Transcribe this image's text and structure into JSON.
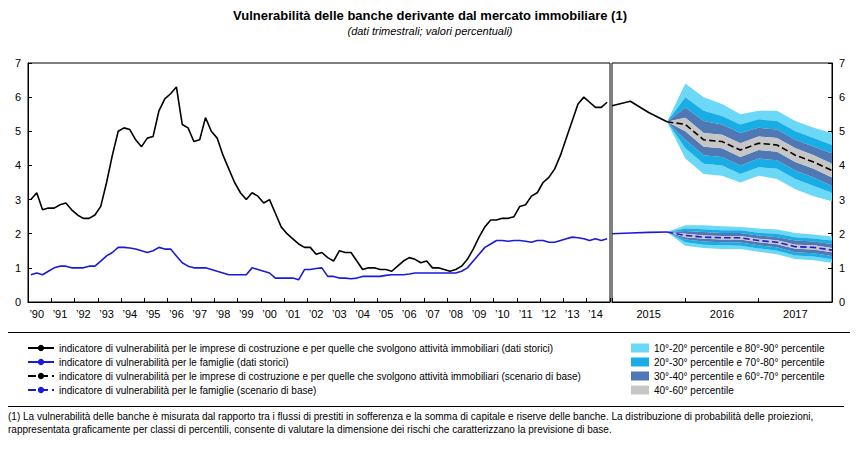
{
  "title": "Vulnerabilità delle banche derivante dal mercato immobiliare (1)",
  "subtitle": "(dati trimestrali; valori percentuali)",
  "note": "(1) La vulnerabilità delle banche è misurata dal rapporto tra i flussi di prestiti in sofferenza e la somma di capitale e riserve delle banche. La distribuzione di probabilità delle proiezioni, rappresentata graficamente per classi di percentili, consente di valutare la dimensione dei rischi che caratterizzano la previsione di base.",
  "chart_data": [
    {
      "type": "line",
      "categories": [
        null,
        "’90",
        null,
        null,
        null,
        "’91",
        null,
        null,
        null,
        "’92",
        null,
        null,
        null,
        "’93",
        null,
        null,
        null,
        "’94",
        null,
        null,
        null,
        "’95",
        null,
        null,
        null,
        "’96",
        null,
        null,
        null,
        "’97",
        null,
        null,
        null,
        "’98",
        null,
        null,
        null,
        "’99",
        null,
        null,
        null,
        "’00",
        null,
        null,
        null,
        "’01",
        null,
        null,
        null,
        "’02",
        null,
        null,
        null,
        "’03",
        null,
        null,
        null,
        "’04",
        null,
        null,
        null,
        "’05",
        null,
        null,
        null,
        "’06",
        null,
        null,
        null,
        "’07",
        null,
        null,
        null,
        "’08",
        null,
        null,
        null,
        "’09",
        null,
        null,
        null,
        "’10",
        null,
        null,
        null,
        "’11",
        null,
        null,
        null,
        "’12",
        null,
        null,
        null,
        "’13",
        null,
        null,
        null,
        "’14",
        null,
        null
      ],
      "ylim": [
        0,
        7
      ],
      "yticks": [
        0,
        1,
        2,
        3,
        4,
        5,
        6,
        7
      ],
      "grid": false,
      "legend": "bottom",
      "series": [
        {
          "name": "indicatore di vulnerabilità per le imprese di costruzione e per quelle che svolgono attività immobiliari (dati storici)",
          "color": "#000000",
          "line_style": "solid",
          "values": [
            3.0,
            3.2,
            2.7,
            2.75,
            2.75,
            2.85,
            2.9,
            2.7,
            2.55,
            2.45,
            2.45,
            2.55,
            2.8,
            3.5,
            4.3,
            5.0,
            5.1,
            5.05,
            4.75,
            4.55,
            4.8,
            4.85,
            5.6,
            5.95,
            6.1,
            6.3,
            5.2,
            5.1,
            4.7,
            4.75,
            5.4,
            5.0,
            4.8,
            4.3,
            3.9,
            3.5,
            3.2,
            3.0,
            3.2,
            3.1,
            2.9,
            3.0,
            2.6,
            2.2,
            2.0,
            1.85,
            1.7,
            1.6,
            1.6,
            1.4,
            1.45,
            1.3,
            1.2,
            1.5,
            1.45,
            1.45,
            1.2,
            0.95,
            1.0,
            1.0,
            0.95,
            0.95,
            0.9,
            1.05,
            1.2,
            1.3,
            1.25,
            1.15,
            1.2,
            1.0,
            1.0,
            0.95,
            0.9,
            0.95,
            1.05,
            1.25,
            1.55,
            1.9,
            2.2,
            2.4,
            2.4,
            2.45,
            2.45,
            2.5,
            2.8,
            2.85,
            3.1,
            3.2,
            3.5,
            3.65,
            3.9,
            4.3,
            4.8,
            5.3,
            5.8,
            6.0,
            5.85,
            5.7,
            5.7,
            5.85
          ]
        },
        {
          "name": "indicatore di vulnerabilità per le famiglie (dati storici)",
          "color": "#1a1adb",
          "line_style": "solid",
          "values": [
            0.8,
            0.85,
            0.8,
            0.9,
            1.0,
            1.05,
            1.05,
            1.0,
            1.0,
            1.0,
            1.05,
            1.05,
            1.2,
            1.35,
            1.45,
            1.6,
            1.6,
            1.58,
            1.55,
            1.5,
            1.45,
            1.5,
            1.6,
            1.55,
            1.55,
            1.35,
            1.15,
            1.05,
            1.0,
            1.0,
            1.0,
            0.95,
            0.9,
            0.85,
            0.8,
            0.8,
            0.8,
            0.8,
            1.0,
            0.95,
            0.9,
            0.85,
            0.7,
            0.7,
            0.7,
            0.7,
            0.65,
            0.95,
            0.95,
            0.98,
            1.0,
            0.75,
            0.75,
            0.7,
            0.7,
            0.68,
            0.7,
            0.75,
            0.75,
            0.75,
            0.75,
            0.78,
            0.8,
            0.8,
            0.8,
            0.82,
            0.85,
            0.85,
            0.85,
            0.85,
            0.85,
            0.85,
            0.85,
            0.85,
            0.9,
            1.0,
            1.2,
            1.4,
            1.6,
            1.7,
            1.8,
            1.8,
            1.78,
            1.8,
            1.8,
            1.78,
            1.75,
            1.8,
            1.8,
            1.75,
            1.75,
            1.8,
            1.85,
            1.9,
            1.88,
            1.85,
            1.8,
            1.85,
            1.8,
            1.85
          ]
        }
      ]
    },
    {
      "type": "line",
      "categories": [
        null,
        null,
        "2015",
        null,
        null,
        null,
        "2016",
        null,
        null,
        null,
        "2017",
        null,
        null
      ],
      "ylim": [
        0,
        7
      ],
      "yticks": [
        0,
        1,
        2,
        3,
        4,
        5,
        6,
        7
      ],
      "grid": false,
      "legend": "bottom",
      "series": [
        {
          "name": "indicatore di vulnerabilità per le imprese di costruzione e per quelle che svolgono attività immobiliari (dati storici)",
          "color": "#000000",
          "line_style": "solid",
          "values": [
            5.75,
            5.88,
            5.55,
            5.28,
            null,
            null,
            null,
            null,
            null,
            null,
            null,
            null,
            null
          ]
        },
        {
          "name": "indicatore di vulnerabilità per le imprese di costruzione e per quelle che svolgono attività immobiliari (scenario di base)",
          "color": "#000000",
          "line_style": "dashed",
          "values": [
            null,
            null,
            null,
            5.28,
            5.2,
            4.75,
            4.7,
            4.45,
            4.65,
            4.6,
            4.3,
            4.1,
            3.85
          ]
        },
        {
          "name": "indicatore di vulnerabilità per le famiglie (dati storici)",
          "color": "#1a1adb",
          "line_style": "solid",
          "values": [
            2.0,
            2.02,
            2.04,
            2.05,
            null,
            null,
            null,
            null,
            null,
            null,
            null,
            null,
            null
          ]
        },
        {
          "name": "indicatore di vulnerabilità per le famiglie (scenario di base)",
          "color": "#1a1adb",
          "line_style": "dashed",
          "values": [
            null,
            null,
            null,
            2.05,
            1.95,
            1.9,
            1.88,
            1.88,
            1.8,
            1.75,
            1.62,
            1.6,
            1.52
          ]
        }
      ],
      "bands": [
        {
          "name": "10°-20° percentile e 80°-90° percentile",
          "color": "#6ad8f6",
          "ranges": [
            [
              10,
              20
            ],
            [
              80,
              90
            ]
          ]
        },
        {
          "name": "20°-30° percentile e 70°-80° percentile",
          "color": "#19ade6",
          "ranges": [
            [
              20,
              30
            ],
            [
              70,
              80
            ]
          ]
        },
        {
          "name": "30°-40° percentile e 60°-70° percentile",
          "color": "#4f78b4",
          "ranges": [
            [
              30,
              40
            ],
            [
              60,
              70
            ]
          ]
        },
        {
          "name": "40°-60° percentile",
          "color": "#c6c6c6",
          "ranges": [
            [
              40,
              60
            ]
          ]
        }
      ],
      "fans": [
        {
          "percentiles": {
            "10": [
              null,
              null,
              null,
              5.28,
              4.2,
              3.75,
              3.7,
              3.5,
              3.7,
              3.6,
              3.3,
              3.1,
              2.95
            ],
            "20": [
              null,
              null,
              null,
              5.28,
              4.5,
              4.05,
              4.0,
              3.75,
              3.95,
              3.9,
              3.6,
              3.4,
              3.2
            ],
            "30": [
              null,
              null,
              null,
              5.28,
              4.75,
              4.3,
              4.25,
              4.0,
              4.2,
              4.15,
              3.85,
              3.65,
              3.4
            ],
            "40": [
              null,
              null,
              null,
              5.28,
              5.0,
              4.55,
              4.5,
              4.25,
              4.45,
              4.4,
              4.1,
              3.9,
              3.65
            ],
            "60": [
              null,
              null,
              null,
              5.28,
              5.4,
              4.95,
              4.9,
              4.65,
              4.85,
              4.8,
              4.5,
              4.3,
              4.05
            ],
            "70": [
              null,
              null,
              null,
              5.28,
              5.7,
              5.3,
              5.2,
              4.95,
              5.1,
              5.05,
              4.75,
              4.55,
              4.35
            ],
            "80": [
              null,
              null,
              null,
              5.28,
              6.0,
              5.6,
              5.45,
              5.2,
              5.35,
              5.3,
              5.0,
              4.8,
              4.6
            ],
            "90": [
              null,
              null,
              null,
              5.28,
              6.4,
              6.0,
              5.8,
              5.5,
              5.6,
              5.6,
              5.3,
              5.1,
              4.95
            ]
          }
        },
        {
          "percentiles": {
            "10": [
              null,
              null,
              null,
              2.05,
              1.65,
              1.58,
              1.55,
              1.55,
              1.47,
              1.4,
              1.26,
              1.22,
              1.15
            ],
            "20": [
              null,
              null,
              null,
              2.05,
              1.75,
              1.68,
              1.66,
              1.65,
              1.57,
              1.5,
              1.36,
              1.33,
              1.25
            ],
            "30": [
              null,
              null,
              null,
              2.05,
              1.83,
              1.77,
              1.75,
              1.74,
              1.66,
              1.6,
              1.46,
              1.43,
              1.35
            ],
            "40": [
              null,
              null,
              null,
              2.05,
              1.9,
              1.85,
              1.83,
              1.83,
              1.75,
              1.69,
              1.56,
              1.54,
              1.46
            ],
            "60": [
              null,
              null,
              null,
              2.05,
              2.0,
              1.95,
              1.93,
              1.93,
              1.85,
              1.81,
              1.68,
              1.66,
              1.58
            ],
            "70": [
              null,
              null,
              null,
              2.05,
              2.08,
              2.05,
              2.02,
              2.02,
              1.95,
              1.9,
              1.8,
              1.77,
              1.7
            ],
            "80": [
              null,
              null,
              null,
              2.05,
              2.15,
              2.13,
              2.1,
              2.1,
              2.03,
              2.0,
              1.9,
              1.86,
              1.8
            ],
            "90": [
              null,
              null,
              null,
              2.05,
              2.25,
              2.25,
              2.22,
              2.2,
              2.15,
              2.12,
              2.02,
              1.98,
              1.92
            ]
          }
        }
      ]
    }
  ]
}
